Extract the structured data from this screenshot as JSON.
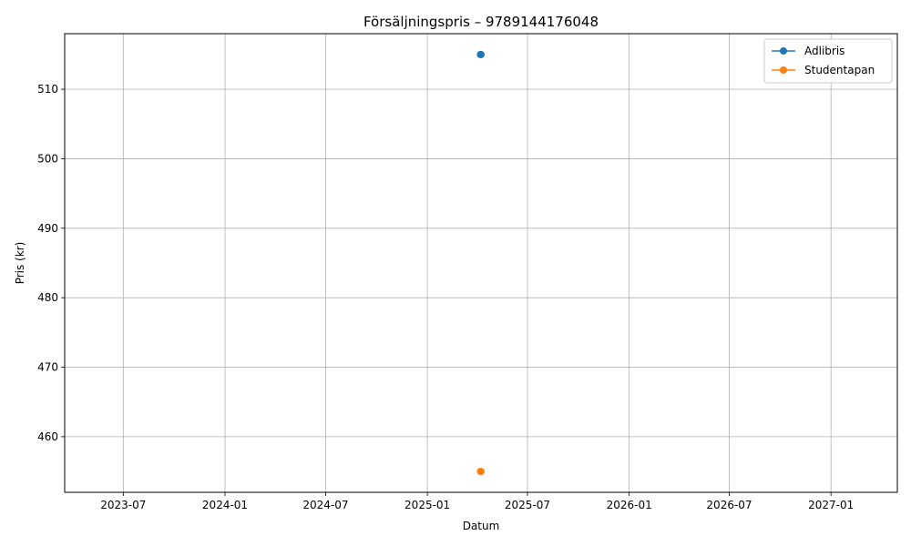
{
  "chart_data": {
    "type": "line",
    "title": "Försäljningspris – 9789144176048",
    "xlabel": "Datum",
    "ylabel": "Pris (kr)",
    "x_axis_type": "date",
    "xlim": [
      "2023-03-17",
      "2027-05-01"
    ],
    "ylim": [
      452,
      518
    ],
    "x_ticks": [
      "2023-07-01",
      "2024-01-01",
      "2024-07-01",
      "2025-01-01",
      "2025-07-01",
      "2026-01-01",
      "2026-07-01",
      "2027-01-01"
    ],
    "x_tick_labels": [
      "2023-07",
      "2024-01",
      "2024-07",
      "2025-01",
      "2025-07",
      "2026-01",
      "2026-07",
      "2027-01"
    ],
    "y_ticks": [
      460,
      470,
      480,
      490,
      500,
      510
    ],
    "y_tick_labels": [
      "460",
      "470",
      "480",
      "490",
      "500",
      "510"
    ],
    "grid": true,
    "legend_position": "top-right",
    "series": [
      {
        "name": "Adlibris",
        "color": "#1f77b4",
        "marker": "circle",
        "points": [
          {
            "x": "2025-04-07",
            "y": 515
          },
          {
            "x": "2025-04-08",
            "y": 515
          }
        ]
      },
      {
        "name": "Studentapan",
        "color": "#ff7f0e",
        "marker": "circle",
        "points": [
          {
            "x": "2025-04-07",
            "y": 455
          },
          {
            "x": "2025-04-08",
            "y": 455
          }
        ]
      }
    ]
  }
}
